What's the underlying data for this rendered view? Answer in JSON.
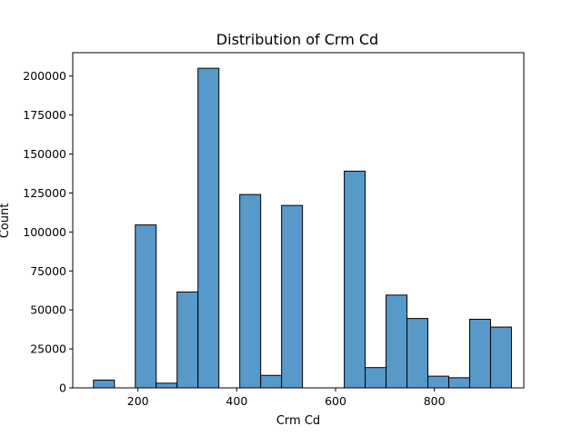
{
  "chart_data": {
    "type": "bar",
    "title": "Distribution of Crm Cd",
    "xlabel": "Crm Cd",
    "ylabel": "Count",
    "xlim": [
      68,
      981
    ],
    "ylim": [
      0,
      215000
    ],
    "xticks": [
      200,
      400,
      600,
      800
    ],
    "yticks": [
      0,
      25000,
      50000,
      75000,
      100000,
      125000,
      150000,
      175000,
      200000
    ],
    "grid": false,
    "legend": "none",
    "bar_color": "#5799c9",
    "bins": [
      {
        "x0": 110.0,
        "x1": 152.3,
        "count": 5000
      },
      {
        "x0": 152.3,
        "x1": 194.6,
        "count": 0
      },
      {
        "x0": 194.6,
        "x1": 236.9,
        "count": 104500
      },
      {
        "x0": 236.9,
        "x1": 279.2,
        "count": 3000
      },
      {
        "x0": 279.2,
        "x1": 321.5,
        "count": 61500
      },
      {
        "x0": 321.5,
        "x1": 363.8,
        "count": 205000
      },
      {
        "x0": 363.8,
        "x1": 406.1,
        "count": 0
      },
      {
        "x0": 406.1,
        "x1": 448.4,
        "count": 124000
      },
      {
        "x0": 448.4,
        "x1": 490.7,
        "count": 8000
      },
      {
        "x0": 490.7,
        "x1": 533.0,
        "count": 117000
      },
      {
        "x0": 533.0,
        "x1": 575.3,
        "count": 0
      },
      {
        "x0": 575.3,
        "x1": 617.6,
        "count": 0
      },
      {
        "x0": 617.6,
        "x1": 659.9,
        "count": 139000
      },
      {
        "x0": 659.9,
        "x1": 702.2,
        "count": 13000
      },
      {
        "x0": 702.2,
        "x1": 744.5,
        "count": 59500
      },
      {
        "x0": 744.5,
        "x1": 786.8,
        "count": 44500
      },
      {
        "x0": 786.8,
        "x1": 829.1,
        "count": 7500
      },
      {
        "x0": 829.1,
        "x1": 871.4,
        "count": 6500
      },
      {
        "x0": 871.4,
        "x1": 913.7,
        "count": 44000
      },
      {
        "x0": 913.7,
        "x1": 956.0,
        "count": 39000
      }
    ]
  }
}
